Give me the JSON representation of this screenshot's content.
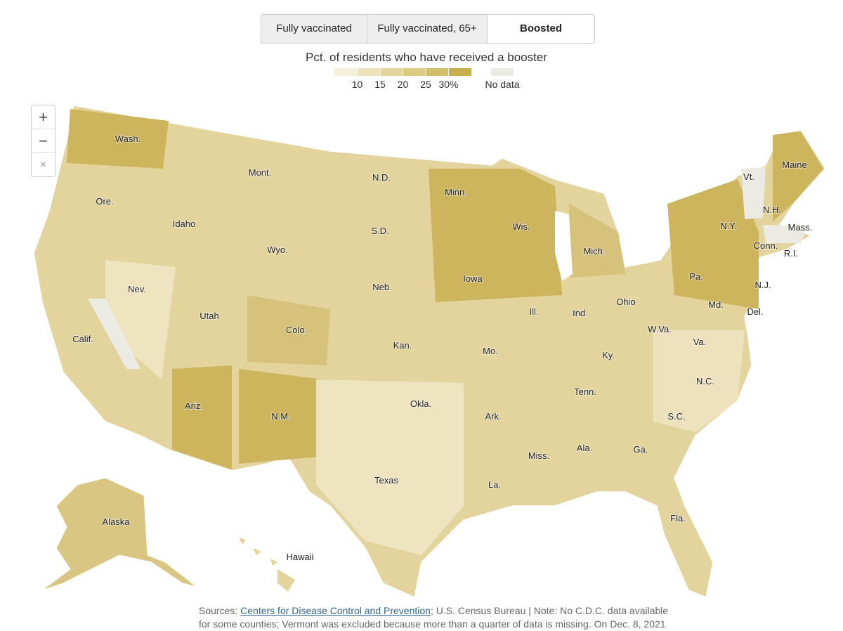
{
  "tabs": [
    {
      "label": "Fully vaccinated"
    },
    {
      "label": "Fully vaccinated, 65+"
    },
    {
      "label": "Boosted",
      "selected": true
    }
  ],
  "legend": {
    "title": "Pct. of residents who have received a booster",
    "xlim": [
      5,
      35
    ],
    "ticks": [
      10,
      15,
      20,
      25,
      {
        "value": 30,
        "label": "30%"
      }
    ],
    "colors": [
      "#f6f0da",
      "#eee2b8",
      "#e5d59d",
      "#dcc983",
      "#d3bd6c",
      "#c8ad51"
    ],
    "no_data": {
      "label": "No data",
      "color": "#ecebe3"
    }
  },
  "zoom_controls": [
    "+",
    "−",
    "×"
  ],
  "state_labels": [
    "Wash.",
    "Mont.",
    "N.D.",
    "Minn.",
    "Maine",
    "Vt.",
    "N.H.",
    "Mass.",
    "Ore.",
    "Idaho",
    "S.D.",
    "Wis.",
    "N.Y.",
    "Conn.",
    "R.I.",
    "Wyo.",
    "Mich.",
    "Nev.",
    "Neb.",
    "Iowa",
    "Pa.",
    "N.J.",
    "Utah",
    "Ohio",
    "Ind.",
    "Ill.",
    "Md.",
    "Del.",
    "Colo.",
    "W.Va.",
    "Calif.",
    "Kan.",
    "Va.",
    "Mo.",
    "Ky.",
    "N.C.",
    "Tenn.",
    "Ariz.",
    "Okla.",
    "N.M.",
    "Ark.",
    "S.C.",
    "Ala.",
    "Ga.",
    "Miss.",
    "Texas",
    "La.",
    "Fla.",
    "Alaska",
    "Hawaii"
  ],
  "footer": {
    "prefix": "Sources:",
    "link": "Centers for Disease Control and Prevention",
    "rest": "; U.S. Census Bureau | Note: No C.D.C. data available",
    "line2": "for some counties; Vermont was excluded because more than a quarter of data is missing. On Dec. 8, 2021"
  }
}
